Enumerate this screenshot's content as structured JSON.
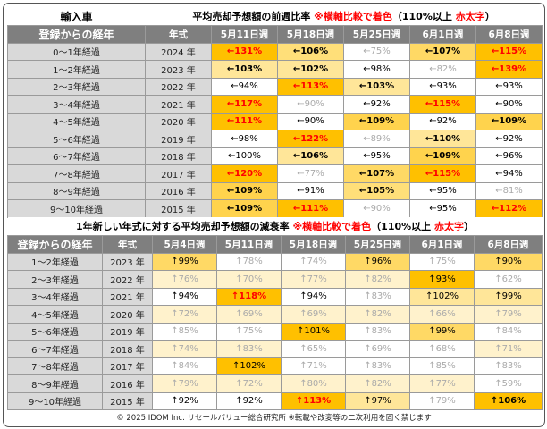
{
  "section1": {
    "label": "輸入車",
    "title_main": "平均売却予想額の前週比率 ",
    "title_note_a": "※横軸比較で着色",
    "title_note_b": "（110%以上 ",
    "title_note_c": "赤太字",
    "title_note_d": "）",
    "col_age": "登録からの経年",
    "col_year": "年式",
    "weeks": [
      "5月11日週",
      "5月18日週",
      "5月25日週",
      "6月1日週",
      "6月8日週"
    ],
    "rows": [
      {
        "age": "0～1年経過",
        "year": "2024 年",
        "cells": [
          {
            "t": "←131%",
            "c": "#ffc000",
            "s": "red"
          },
          {
            "t": "←106%",
            "c": "#ffdf79",
            "s": "bold"
          },
          {
            "t": "←75%",
            "c": "#ffffff",
            "s": "dim"
          },
          {
            "t": "←107%",
            "c": "#ffd965",
            "s": "bold"
          },
          {
            "t": "←115%",
            "c": "#ffc000",
            "s": "red"
          }
        ]
      },
      {
        "age": "1～2年経過",
        "year": "2023 年",
        "cells": [
          {
            "t": "←103%",
            "c": "#ffe699",
            "s": "bold"
          },
          {
            "t": "←102%",
            "c": "#ffe699",
            "s": "bold"
          },
          {
            "t": "←98%",
            "c": "#ffffff",
            "s": "v"
          },
          {
            "t": "←82%",
            "c": "#ffffff",
            "s": "dim"
          },
          {
            "t": "←139%",
            "c": "#ffc000",
            "s": "red"
          }
        ]
      },
      {
        "age": "2～3年経過",
        "year": "2022 年",
        "cells": [
          {
            "t": "←94%",
            "c": "#ffffff",
            "s": "v"
          },
          {
            "t": "←113%",
            "c": "#ffc000",
            "s": "red"
          },
          {
            "t": "←103%",
            "c": "#ffe699",
            "s": "bold"
          },
          {
            "t": "←93%",
            "c": "#ffffff",
            "s": "v"
          },
          {
            "t": "←93%",
            "c": "#ffffff",
            "s": "v"
          }
        ]
      },
      {
        "age": "3～4年経過",
        "year": "2021 年",
        "cells": [
          {
            "t": "←117%",
            "c": "#ffc000",
            "s": "red"
          },
          {
            "t": "←90%",
            "c": "#ffffff",
            "s": "dim"
          },
          {
            "t": "←92%",
            "c": "#ffffff",
            "s": "v"
          },
          {
            "t": "←115%",
            "c": "#ffc000",
            "s": "red"
          },
          {
            "t": "←90%",
            "c": "#ffffff",
            "s": "v"
          }
        ]
      },
      {
        "age": "4～5年経過",
        "year": "2020 年",
        "cells": [
          {
            "t": "←111%",
            "c": "#ffc000",
            "s": "red"
          },
          {
            "t": "←90%",
            "c": "#ffffff",
            "s": "v"
          },
          {
            "t": "←109%",
            "c": "#ffd34d",
            "s": "bold"
          },
          {
            "t": "←92%",
            "c": "#ffffff",
            "s": "v"
          },
          {
            "t": "←109%",
            "c": "#ffd34d",
            "s": "bold"
          }
        ]
      },
      {
        "age": "5～6年経過",
        "year": "2019 年",
        "cells": [
          {
            "t": "←98%",
            "c": "#ffffff",
            "s": "v"
          },
          {
            "t": "←122%",
            "c": "#ffc000",
            "s": "red"
          },
          {
            "t": "←89%",
            "c": "#ffffff",
            "s": "dim"
          },
          {
            "t": "←110%",
            "c": "#ffe699",
            "s": "bold"
          },
          {
            "t": "←92%",
            "c": "#ffffff",
            "s": "v"
          }
        ]
      },
      {
        "age": "6～7年経過",
        "year": "2018 年",
        "cells": [
          {
            "t": "←100%",
            "c": "#ffffff",
            "s": "v"
          },
          {
            "t": "←106%",
            "c": "#ffe699",
            "s": "bold"
          },
          {
            "t": "←95%",
            "c": "#ffffff",
            "s": "v"
          },
          {
            "t": "←109%",
            "c": "#ffd34d",
            "s": "bold"
          },
          {
            "t": "←96%",
            "c": "#ffffff",
            "s": "v"
          }
        ]
      },
      {
        "age": "7～8年経過",
        "year": "2017 年",
        "cells": [
          {
            "t": "←120%",
            "c": "#ffc000",
            "s": "red"
          },
          {
            "t": "←77%",
            "c": "#ffffff",
            "s": "dim"
          },
          {
            "t": "←107%",
            "c": "#ffd965",
            "s": "bold"
          },
          {
            "t": "←115%",
            "c": "#ffc000",
            "s": "red"
          },
          {
            "t": "←94%",
            "c": "#ffffff",
            "s": "v"
          }
        ]
      },
      {
        "age": "8～9年経過",
        "year": "2016 年",
        "cells": [
          {
            "t": "←109%",
            "c": "#ffd34d",
            "s": "bold"
          },
          {
            "t": "←91%",
            "c": "#ffffff",
            "s": "v"
          },
          {
            "t": "←105%",
            "c": "#ffdf79",
            "s": "bold"
          },
          {
            "t": "←95%",
            "c": "#ffffff",
            "s": "v"
          },
          {
            "t": "←81%",
            "c": "#ffffff",
            "s": "dim"
          }
        ]
      },
      {
        "age": "9～10年経過",
        "year": "2015 年",
        "cells": [
          {
            "t": "←109%",
            "c": "#ffd34d",
            "s": "bold"
          },
          {
            "t": "←111%",
            "c": "#ffc000",
            "s": "red"
          },
          {
            "t": "←90%",
            "c": "#ffffff",
            "s": "dim"
          },
          {
            "t": "←95%",
            "c": "#ffffff",
            "s": "v"
          },
          {
            "t": "←112%",
            "c": "#ffc000",
            "s": "red"
          }
        ]
      }
    ]
  },
  "section2": {
    "title_main": "1年新しい年式に対する平均売却予想額の減衰率 ",
    "title_note_a": "※横軸比較で着色",
    "title_note_b": "（110%以上 ",
    "title_note_c": "赤太字",
    "title_note_d": "）",
    "col_age": "登録からの経年",
    "col_year": "年式",
    "weeks": [
      "5月4日週",
      "5月11日週",
      "5月18日週",
      "5月25日週",
      "6月1日週",
      "6月8日週"
    ],
    "rows": [
      {
        "age": "1～2年経過",
        "year": "2023 年",
        "cells": [
          {
            "t": "↑99%",
            "c": "#ffd965",
            "s": "v"
          },
          {
            "t": "↑78%",
            "c": "#ffffff",
            "s": "dim"
          },
          {
            "t": "↑74%",
            "c": "#ffffff",
            "s": "dim"
          },
          {
            "t": "↑96%",
            "c": "#ffd965",
            "s": "v"
          },
          {
            "t": "↑75%",
            "c": "#ffffff",
            "s": "dim"
          },
          {
            "t": "↑90%",
            "c": "#ffd965",
            "s": "v"
          }
        ]
      },
      {
        "age": "2～3年経過",
        "year": "2022 年",
        "cells": [
          {
            "t": "↑76%",
            "c": "#fff2cc",
            "s": "dim"
          },
          {
            "t": "↑70%",
            "c": "#fff2cc",
            "s": "dim"
          },
          {
            "t": "↑77%",
            "c": "#fff2cc",
            "s": "dim"
          },
          {
            "t": "↑82%",
            "c": "#fff2cc",
            "s": "dim"
          },
          {
            "t": "↑93%",
            "c": "#ffc000",
            "s": "v"
          },
          {
            "t": "↑62%",
            "c": "#ffffff",
            "s": "dim"
          }
        ]
      },
      {
        "age": "3～4年経過",
        "year": "2021 年",
        "cells": [
          {
            "t": "↑94%",
            "c": "#ffffff",
            "s": "v"
          },
          {
            "t": "↑118%",
            "c": "#ffc000",
            "s": "red"
          },
          {
            "t": "↑94%",
            "c": "#ffffff",
            "s": "v"
          },
          {
            "t": "↑83%",
            "c": "#ffffff",
            "s": "dim"
          },
          {
            "t": "↑102%",
            "c": "#ffe699",
            "s": "v"
          },
          {
            "t": "↑99%",
            "c": "#ffe699",
            "s": "v"
          }
        ]
      },
      {
        "age": "4～5年経過",
        "year": "2020 年",
        "cells": [
          {
            "t": "↑72%",
            "c": "#fff2cc",
            "s": "dim"
          },
          {
            "t": "↑69%",
            "c": "#fff2cc",
            "s": "dim"
          },
          {
            "t": "↑69%",
            "c": "#fff2cc",
            "s": "dim"
          },
          {
            "t": "↑82%",
            "c": "#fff2cc",
            "s": "dim"
          },
          {
            "t": "↑66%",
            "c": "#fff2cc",
            "s": "dim"
          },
          {
            "t": "↑79%",
            "c": "#fff2cc",
            "s": "dim"
          }
        ]
      },
      {
        "age": "5～6年経過",
        "year": "2019 年",
        "cells": [
          {
            "t": "↑85%",
            "c": "#ffffff",
            "s": "dim"
          },
          {
            "t": "↑75%",
            "c": "#ffffff",
            "s": "dim"
          },
          {
            "t": "↑101%",
            "c": "#ffc000",
            "s": "v"
          },
          {
            "t": "↑83%",
            "c": "#ffffff",
            "s": "dim"
          },
          {
            "t": "↑99%",
            "c": "#ffd965",
            "s": "v"
          },
          {
            "t": "↑84%",
            "c": "#ffffff",
            "s": "dim"
          }
        ]
      },
      {
        "age": "6～7年経過",
        "year": "2018 年",
        "cells": [
          {
            "t": "↑74%",
            "c": "#fff2cc",
            "s": "dim"
          },
          {
            "t": "↑83%",
            "c": "#fff2cc",
            "s": "dim"
          },
          {
            "t": "↑65%",
            "c": "#ffffff",
            "s": "dim"
          },
          {
            "t": "↑69%",
            "c": "#ffffff",
            "s": "dim"
          },
          {
            "t": "↑68%",
            "c": "#ffffff",
            "s": "dim"
          },
          {
            "t": "↑71%",
            "c": "#fff2cc",
            "s": "dim"
          }
        ]
      },
      {
        "age": "7～8年経過",
        "year": "2017 年",
        "cells": [
          {
            "t": "↑84%",
            "c": "#ffffff",
            "s": "dim"
          },
          {
            "t": "↑102%",
            "c": "#ffc000",
            "s": "v"
          },
          {
            "t": "↑71%",
            "c": "#ffffff",
            "s": "dim"
          },
          {
            "t": "↑83%",
            "c": "#ffffff",
            "s": "dim"
          },
          {
            "t": "↑85%",
            "c": "#ffffff",
            "s": "dim"
          },
          {
            "t": "↑83%",
            "c": "#ffffff",
            "s": "dim"
          }
        ]
      },
      {
        "age": "8～9年経過",
        "year": "2016 年",
        "cells": [
          {
            "t": "↑79%",
            "c": "#fff2cc",
            "s": "dim"
          },
          {
            "t": "↑72%",
            "c": "#fff2cc",
            "s": "dim"
          },
          {
            "t": "↑80%",
            "c": "#fff2cc",
            "s": "dim"
          },
          {
            "t": "↑82%",
            "c": "#fff2cc",
            "s": "dim"
          },
          {
            "t": "↑77%",
            "c": "#fff2cc",
            "s": "dim"
          },
          {
            "t": "↑59%",
            "c": "#ffffff",
            "s": "dim"
          }
        ]
      },
      {
        "age": "9～10年経過",
        "year": "2015 年",
        "cells": [
          {
            "t": "↑92%",
            "c": "#ffffff",
            "s": "v"
          },
          {
            "t": "↑92%",
            "c": "#ffffff",
            "s": "v"
          },
          {
            "t": "↑113%",
            "c": "#ffc000",
            "s": "red"
          },
          {
            "t": "↑97%",
            "c": "#ffe699",
            "s": "v"
          },
          {
            "t": "↑79%",
            "c": "#ffffff",
            "s": "dim"
          },
          {
            "t": "↑106%",
            "c": "#ffc000",
            "s": "bold"
          }
        ]
      }
    ]
  },
  "footer": "© 2025 IDOM Inc. リセールバリュー総合研究所 ※転載や改変等の二次利用を固く禁じます",
  "chart_data": [
    {
      "type": "table",
      "title": "平均売却予想額の前週比率",
      "columns": [
        "5月11日週",
        "5月18日週",
        "5月25日週",
        "6月1日週",
        "6月8日週"
      ],
      "rows": [
        "2024 年",
        "2023 年",
        "2022 年",
        "2021 年",
        "2020 年",
        "2019 年",
        "2018 年",
        "2017 年",
        "2016 年",
        "2015 年"
      ],
      "values": [
        [
          131,
          106,
          75,
          107,
          115
        ],
        [
          103,
          102,
          98,
          82,
          139
        ],
        [
          94,
          113,
          103,
          93,
          93
        ],
        [
          117,
          90,
          92,
          115,
          90
        ],
        [
          111,
          90,
          109,
          92,
          109
        ],
        [
          98,
          122,
          89,
          110,
          92
        ],
        [
          100,
          106,
          95,
          109,
          96
        ],
        [
          120,
          77,
          107,
          115,
          94
        ],
        [
          109,
          91,
          105,
          95,
          81
        ],
        [
          109,
          111,
          90,
          95,
          112
        ]
      ]
    },
    {
      "type": "table",
      "title": "1年新しい年式に対する平均売却予想額の減衰率",
      "columns": [
        "5月4日週",
        "5月11日週",
        "5月18日週",
        "5月25日週",
        "6月1日週",
        "6月8日週"
      ],
      "rows": [
        "2023 年",
        "2022 年",
        "2021 年",
        "2020 年",
        "2019 年",
        "2018 年",
        "2017 年",
        "2016 年",
        "2015 年"
      ],
      "values": [
        [
          99,
          78,
          74,
          96,
          75,
          90
        ],
        [
          76,
          70,
          77,
          82,
          93,
          62
        ],
        [
          94,
          118,
          94,
          83,
          102,
          99
        ],
        [
          72,
          69,
          69,
          82,
          66,
          79
        ],
        [
          85,
          75,
          101,
          83,
          99,
          84
        ],
        [
          74,
          83,
          65,
          69,
          68,
          71
        ],
        [
          84,
          102,
          71,
          83,
          85,
          83
        ],
        [
          79,
          72,
          80,
          82,
          77,
          59
        ],
        [
          92,
          92,
          113,
          97,
          79,
          106
        ]
      ]
    }
  ]
}
